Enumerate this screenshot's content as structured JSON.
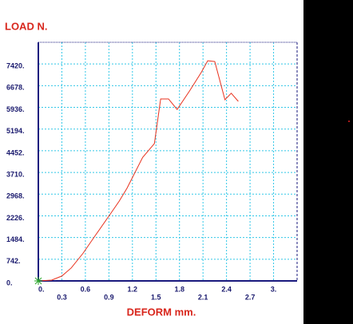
{
  "chart_data": {
    "type": "line",
    "y_label": "LOAD  N.",
    "x_label": "DEFORM  mm.",
    "xlim": [
      0,
      3.3
    ],
    "ylim": [
      0,
      8162
    ],
    "xticks": [
      {
        "value": 0,
        "label": "0."
      },
      0.3,
      0.6,
      0.9,
      1.2,
      1.5,
      1.8,
      2.1,
      2.4,
      2.7,
      {
        "value": 3,
        "label": "3."
      }
    ],
    "yticks": [
      {
        "value": 0,
        "label": "0."
      },
      {
        "value": 742,
        "label": "742."
      },
      {
        "value": 1484,
        "label": "1484."
      },
      {
        "value": 2226,
        "label": "2226."
      },
      {
        "value": 2968,
        "label": "2968."
      },
      {
        "value": 3710,
        "label": "3710."
      },
      {
        "value": 4452,
        "label": "4452."
      },
      {
        "value": 5194,
        "label": "5194."
      },
      {
        "value": 5936,
        "label": "5936."
      },
      {
        "value": 6678,
        "label": "6678."
      },
      {
        "value": 7420,
        "label": "7420."
      }
    ],
    "grid": true,
    "series": [
      {
        "color": "#e8321e",
        "x": [
          0,
          0.17,
          0.3,
          0.42,
          0.57,
          0.72,
          0.93,
          1.03,
          1.13,
          1.33,
          1.48,
          1.56,
          1.66,
          1.77,
          1.93,
          2.08,
          2.16,
          2.25,
          2.38,
          2.46,
          2.55
        ],
        "values": [
          0,
          28,
          167,
          445,
          945,
          1528,
          2334,
          2723,
          3168,
          4224,
          4697,
          6225,
          6225,
          5864,
          6503,
          7142,
          7531,
          7503,
          6197,
          6420,
          6142
        ]
      }
    ]
  }
}
